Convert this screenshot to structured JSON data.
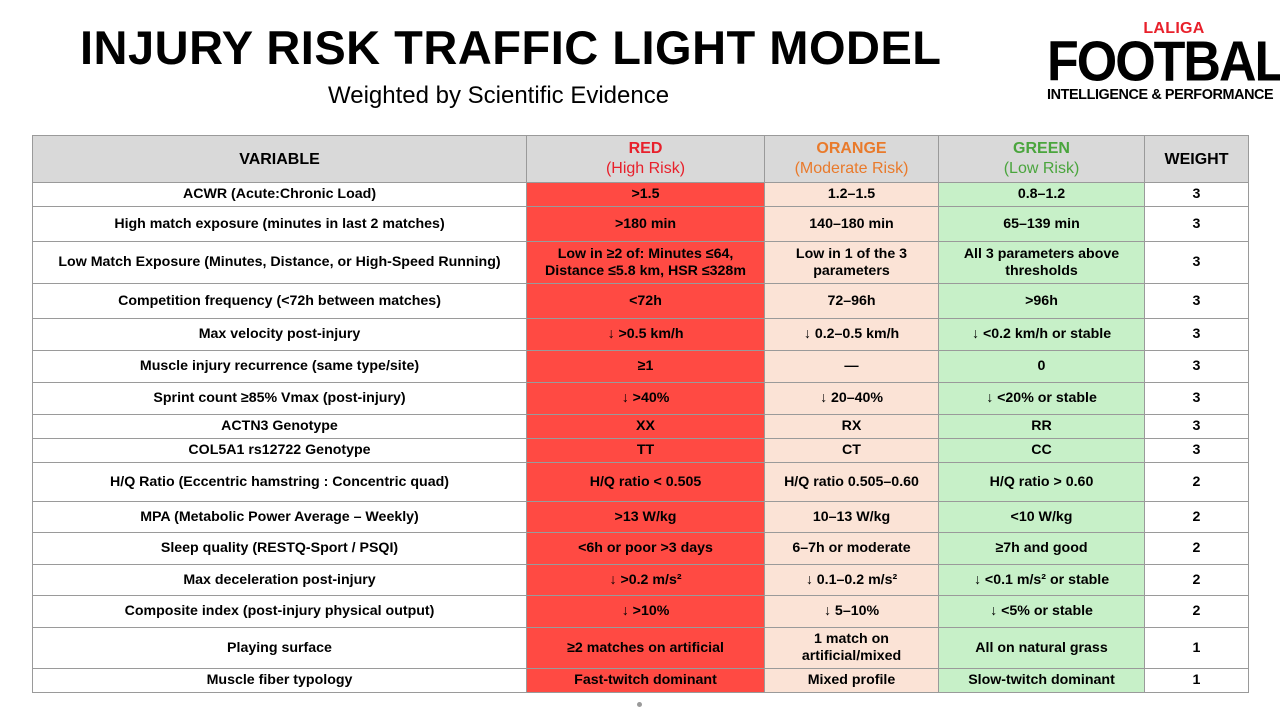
{
  "title": "INJURY RISK TRAFFIC LIGHT MODEL",
  "subtitle": "Weighted by Scientific Evidence",
  "logo": {
    "top": "LALIGA",
    "main": "FOOTBALL",
    "sub": "INTELLIGENCE & PERFORMANCE"
  },
  "colors": {
    "red_cell": "#ff4a43",
    "orange_cell": "#fbe3d6",
    "green_cell": "#c7f0c8",
    "header_bg": "#d9d9d9",
    "red_text": "#e8202b",
    "orange_text": "#e97a2b",
    "green_text": "#4aa53d"
  },
  "table": {
    "headers": {
      "variable": "VARIABLE",
      "red": "RED",
      "red_sub": "(High Risk)",
      "orange": "ORANGE",
      "orange_sub": "(Moderate Risk)",
      "green": "GREEN",
      "green_sub": "(Low Risk)",
      "weight": "WEIGHT"
    },
    "rows": [
      {
        "variable": "ACWR (Acute:Chronic Load)",
        "red": ">1.5",
        "orange": "1.2–1.5",
        "green": "0.8–1.2",
        "weight": "3"
      },
      {
        "variable": "High match exposure (minutes in last 2 matches)",
        "red": ">180 min",
        "orange": "140–180 min",
        "green": "65–139 min",
        "weight": "3"
      },
      {
        "variable": "Low Match Exposure (Minutes, Distance, or High-Speed Running)",
        "red": "Low in ≥2 of: Minutes ≤64, Distance ≤5.8 km, HSR ≤328m",
        "orange": "Low in 1 of the 3 parameters",
        "green": "All 3 parameters above thresholds",
        "weight": "3"
      },
      {
        "variable": "Competition frequency (<72h between matches)",
        "red": "<72h",
        "orange": "72–96h",
        "green": ">96h",
        "weight": "3"
      },
      {
        "variable": "Max velocity post-injury",
        "red": "↓ >0.5 km/h",
        "orange": "↓ 0.2–0.5 km/h",
        "green": "↓ <0.2 km/h or stable",
        "weight": "3"
      },
      {
        "variable": "Muscle injury recurrence (same type/site)",
        "red": "≥1",
        "orange": "—",
        "green": "0",
        "weight": "3"
      },
      {
        "variable": "Sprint count ≥85% Vmax (post-injury)",
        "red": "↓ >40%",
        "orange": "↓ 20–40%",
        "green": "↓ <20% or stable",
        "weight": "3"
      },
      {
        "variable": "ACTN3 Genotype",
        "red": "XX",
        "orange": "RX",
        "green": "RR",
        "weight": "3"
      },
      {
        "variable": "COL5A1 rs12722 Genotype",
        "red": "TT",
        "orange": "CT",
        "green": "CC",
        "weight": "3"
      },
      {
        "variable": "H/Q Ratio (Eccentric hamstring : Concentric quad)",
        "red": "H/Q ratio < 0.505",
        "orange": "H/Q ratio 0.505–0.60",
        "green": "H/Q ratio > 0.60",
        "weight": "2"
      },
      {
        "variable": "MPA (Metabolic Power Average – Weekly)",
        "red": ">13 W/kg",
        "orange": "10–13 W/kg",
        "green": "<10 W/kg",
        "weight": "2"
      },
      {
        "variable": "Sleep quality (RESTQ-Sport / PSQI)",
        "red": "<6h or poor >3 days",
        "orange": "6–7h or moderate",
        "green": "≥7h and good",
        "weight": "2"
      },
      {
        "variable": "Max deceleration post-injury",
        "red": "↓ >0.2 m/s²",
        "orange": "↓ 0.1–0.2 m/s²",
        "green": "↓ <0.1 m/s² or stable",
        "weight": "2"
      },
      {
        "variable": "Composite index (post-injury physical output)",
        "red": "↓ >10%",
        "orange": "↓ 5–10%",
        "green": "↓ <5% or stable",
        "weight": "2"
      },
      {
        "variable": "Playing surface",
        "red": "≥2 matches on artificial",
        "orange": "1 match on artificial/mixed",
        "green": "All on natural grass",
        "weight": "1"
      },
      {
        "variable": "Muscle fiber typology",
        "red": "Fast-twitch dominant",
        "orange": "Mixed profile",
        "green": "Slow-twitch dominant",
        "weight": "1"
      }
    ]
  }
}
